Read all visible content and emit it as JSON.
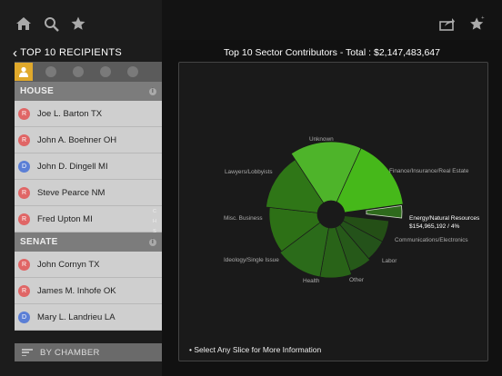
{
  "nav": {
    "home_icon": "home-icon",
    "search_icon": "search-icon",
    "favorites_icon": "star-icon",
    "share_icon": "share-icon",
    "add_favorite_icon": "star-plus-icon"
  },
  "sidebar": {
    "back_label": "TOP 10 RECIPIENTS",
    "filters": [
      "person-icon",
      "elephant-icon",
      "donkey-icon",
      "gear-icon",
      "globe-icon"
    ],
    "sections": [
      {
        "title": "HOUSE",
        "rows": [
          {
            "party": "R",
            "name": "Joe L. Barton TX"
          },
          {
            "party": "R",
            "name": "John A. Boehner OH"
          },
          {
            "party": "D",
            "name": "John D. Dingell MI"
          },
          {
            "party": "R",
            "name": "Steve Pearce NM"
          },
          {
            "party": "R",
            "name": "Fred Upton MI"
          }
        ]
      },
      {
        "title": "SENATE",
        "rows": [
          {
            "party": "R",
            "name": "John Cornyn TX"
          },
          {
            "party": "R",
            "name": "James M. Inhofe OK"
          },
          {
            "party": "D",
            "name": "Mary L. Landrieu LA"
          }
        ]
      }
    ],
    "index_letters": [
      "C",
      "H",
      "S"
    ],
    "bottom_label": "BY CHAMBER"
  },
  "main": {
    "title": "Top 10 Sector Contributors - Total : $2,147,483,647",
    "footer_note": "• Select Any Slice for More Information",
    "callout_value": "$154,965,192 / 4%"
  },
  "chart_data": {
    "type": "pie",
    "title": "Top 10 Sector Contributors - Total : $2,147,483,647",
    "slices": [
      {
        "label": "Energy/Natural Resources",
        "value": 4
      },
      {
        "label": "Communications/Electronics",
        "value": 6
      },
      {
        "label": "Labor",
        "value": 6
      },
      {
        "label": "Other",
        "value": 6
      },
      {
        "label": "Health",
        "value": 8
      },
      {
        "label": "Ideology/Single Issue",
        "value": 12
      },
      {
        "label": "Misc. Business",
        "value": 12
      },
      {
        "label": "Lawyers/Lobbyists",
        "value": 14
      },
      {
        "label": "Unknown",
        "value": 16
      },
      {
        "label": "Finance/Insurance/Real Estate",
        "value": 16
      }
    ],
    "colors": [
      "#2e6a1c",
      "#244f16",
      "#24521a",
      "#265919",
      "#296318",
      "#2b6b1a",
      "#2d7016",
      "#2f7617",
      "#4eb42a",
      "#46b81a"
    ]
  }
}
